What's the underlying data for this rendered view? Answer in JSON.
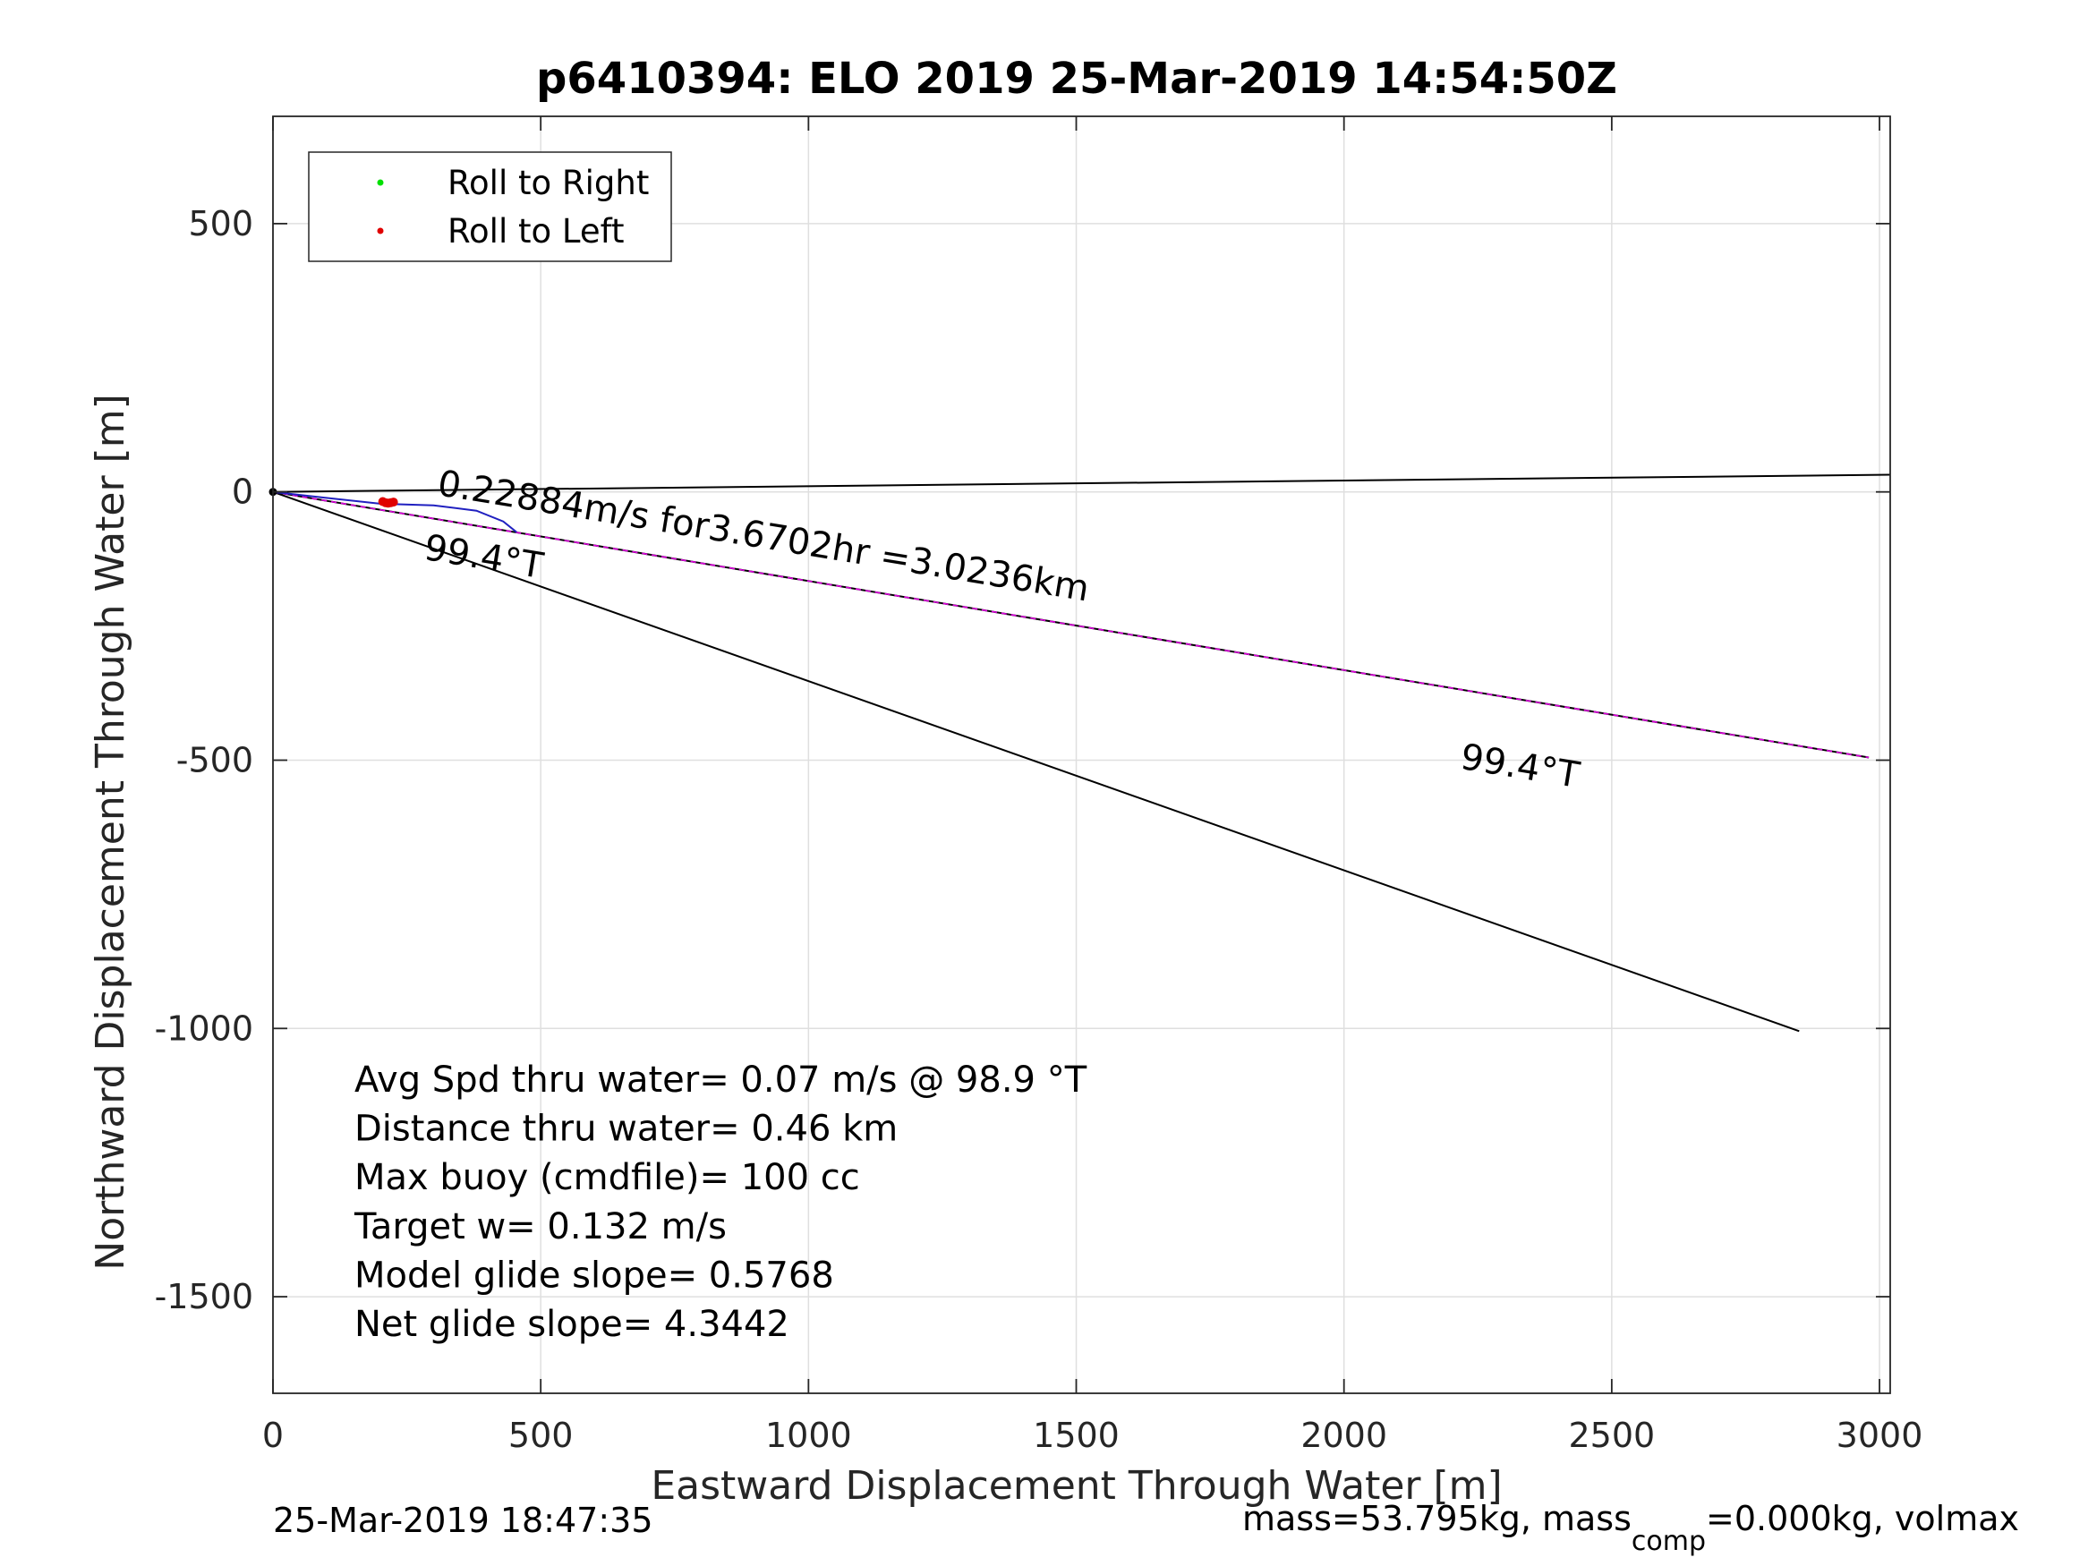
{
  "chart_data": {
    "type": "line",
    "title": "p6410394: ELO 2019 25-Mar-2019 14:54:50Z",
    "xlabel": "Eastward Displacement Through Water [m]",
    "ylabel": "Northward Displacement Through Water [m]",
    "xlim": [
      0,
      3020
    ],
    "ylim": [
      -1680,
      700
    ],
    "xticks": [
      0,
      500,
      1000,
      1500,
      2000,
      2500,
      3000
    ],
    "yticks": [
      -1500,
      -1000,
      -500,
      0,
      500
    ],
    "xtick_labels": [
      "0",
      "500",
      "1000",
      "1500",
      "2000",
      "2500",
      "3000"
    ],
    "ytick_labels": [
      "-1500",
      "-1000",
      "-500",
      "0",
      "500"
    ],
    "grid": true,
    "legend": {
      "placement": "top-left",
      "entries": [
        {
          "label": "Roll to Right",
          "color": "#00e000"
        },
        {
          "label": "Roll to Left",
          "color": "#e00000"
        }
      ]
    },
    "series": [
      {
        "color": "#000000",
        "x": [
          0,
          3020
        ],
        "y": [
          0,
          32
        ]
      },
      {
        "color": "#000000",
        "x": [
          0,
          2850
        ],
        "y": [
          0,
          -1005
        ]
      },
      {
        "color": "#000000",
        "x": [
          0,
          2980
        ],
        "y": [
          0,
          -495
        ]
      },
      {
        "color": "#e000e0",
        "x": [
          0,
          2980
        ],
        "y": [
          0,
          -495
        ]
      },
      {
        "color": "#2020c0",
        "x": [
          0,
          90,
          200,
          300,
          380,
          430,
          455
        ],
        "y": [
          0,
          -10,
          -22,
          -25,
          -35,
          -55,
          -75
        ]
      },
      {
        "color": "#e00000",
        "x": [
          205,
          210,
          215,
          220,
          225
        ],
        "y": [
          -18,
          -20,
          -21,
          -20,
          -19
        ]
      }
    ],
    "annotations": [
      {
        "text": "0.22884m/s for3.6702hr =3.0236km",
        "x": 305,
        "y": -5,
        "angle_deg": 9.3
      },
      {
        "text": "99.4°T",
        "x": 280,
        "y": -125,
        "angle_deg": 9.3
      },
      {
        "text": "99.4°T",
        "x": 2215,
        "y": -515,
        "angle_deg": 9.3
      }
    ],
    "stats": [
      "Avg Spd thru water=  0.07 m/s @  98.9 °T",
      "Distance thru water=  0.46 km",
      "Max buoy (cmdfile)= 100 cc",
      "Target w= 0.132 m/s",
      "Model glide slope= 0.5768",
      "Net glide slope= 4.3442"
    ]
  },
  "footer": {
    "timestamp": "25-Mar-2019 18:47:35",
    "mass_prefix": "mass=53.795kg, mass",
    "mass_subscript": "comp",
    "mass_suffix": "=0.000kg, volmax"
  }
}
